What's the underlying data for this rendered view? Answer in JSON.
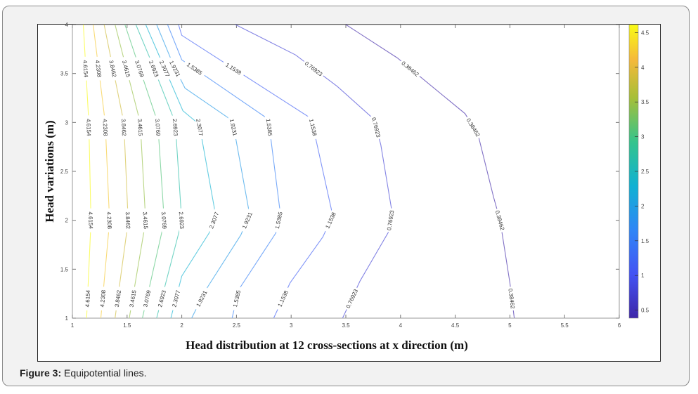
{
  "caption": {
    "label": "Figure 3:",
    "text": " Equipotential lines."
  },
  "chart_data": {
    "type": "contour",
    "xlabel": "Head distribution at 12 cross-sections at x direction (m)",
    "ylabel": "Head variations (m)",
    "xlim": [
      1,
      6
    ],
    "ylim": [
      1,
      4
    ],
    "xticks": [
      "1",
      "1.5",
      "2",
      "2.5",
      "3",
      "3.5",
      "4",
      "4.5",
      "5",
      "5.5",
      "6"
    ],
    "yticks": [
      "1",
      "1.5",
      "2",
      "2.5",
      "3",
      "3.5",
      "4"
    ],
    "colorbar": {
      "colormap": "parula",
      "clim": [
        0.38462,
        4.6154
      ],
      "ticks": [
        "0.5",
        "1",
        "1.5",
        "2",
        "2.5",
        "3",
        "3.5",
        "4",
        "4.5"
      ]
    },
    "grid": false,
    "contours": [
      {
        "level": "4.6154",
        "points": [
          [
            1.1,
            4
          ],
          [
            1.15,
            3.0
          ],
          [
            1.17,
            1.99
          ],
          [
            1.13,
            1.0
          ]
        ]
      },
      {
        "level": "4.2308",
        "points": [
          [
            1.19,
            4
          ],
          [
            1.3,
            3.0
          ],
          [
            1.34,
            1.99
          ],
          [
            1.26,
            1.0
          ]
        ]
      },
      {
        "level": "3.8462",
        "points": [
          [
            1.29,
            4
          ],
          [
            1.47,
            3.0
          ],
          [
            1.51,
            1.99
          ],
          [
            1.39,
            1.0
          ]
        ]
      },
      {
        "level": "3.4615",
        "points": [
          [
            1.39,
            4
          ],
          [
            1.62,
            3.0
          ],
          [
            1.67,
            1.99
          ],
          [
            1.52,
            1.0
          ]
        ]
      },
      {
        "level": "3.0769",
        "points": [
          [
            1.48,
            4
          ],
          [
            1.57,
            3.7
          ],
          [
            1.78,
            3.0
          ],
          [
            1.84,
            1.99
          ],
          [
            1.64,
            1.0
          ]
        ]
      },
      {
        "level": "2.6923",
        "points": [
          [
            1.58,
            4
          ],
          [
            1.7,
            3.68
          ],
          [
            1.94,
            3.0
          ],
          [
            2.0,
            1.99
          ],
          [
            1.77,
            1.0
          ]
        ]
      },
      {
        "level": "2.3077",
        "points": [
          [
            1.67,
            4
          ],
          [
            1.86,
            3.51
          ],
          [
            2.01,
            3.12
          ],
          [
            2.16,
            2.98
          ],
          [
            2.31,
            2.05
          ],
          [
            2.25,
            1.87
          ],
          [
            2.0,
            1.43
          ],
          [
            1.9,
            1.0
          ]
        ]
      },
      {
        "level": "1.9231",
        "points": [
          [
            1.77,
            4
          ],
          [
            1.93,
            3.57
          ],
          [
            2.03,
            3.35
          ],
          [
            2.46,
            3.02
          ],
          [
            2.48,
            2.92
          ],
          [
            2.62,
            2.06
          ],
          [
            2.54,
            1.85
          ],
          [
            2.22,
            1.29
          ],
          [
            2.09,
            1.0
          ]
        ]
      },
      {
        "level": "1.5385",
        "points": [
          [
            1.87,
            4
          ],
          [
            2.0,
            3.64
          ],
          [
            2.77,
            3.05
          ],
          [
            2.8,
            2.96
          ],
          [
            2.9,
            2.08
          ],
          [
            2.86,
            1.87
          ],
          [
            2.52,
            1.29
          ],
          [
            2.46,
            1.0
          ]
        ]
      },
      {
        "level": "1.1538",
        "points": [
          [
            1.97,
            4
          ],
          [
            2.0,
            3.89
          ],
          [
            3.17,
            3.05
          ],
          [
            3.2,
            2.96
          ],
          [
            3.38,
            2.05
          ],
          [
            3.29,
            1.83
          ],
          [
            2.99,
            1.36
          ],
          [
            2.84,
            1.0
          ]
        ]
      },
      {
        "level": "0.76923",
        "points": [
          [
            2.49,
            4
          ],
          [
            3.04,
            3.69
          ],
          [
            3.42,
            3.37
          ],
          [
            3.76,
            3.03
          ],
          [
            3.82,
            2.77
          ],
          [
            3.92,
            2.1
          ],
          [
            3.89,
            1.88
          ],
          [
            3.63,
            1.38
          ],
          [
            3.47,
            1.0
          ]
        ]
      },
      {
        "level": "0.38462",
        "points": [
          [
            3.5,
            4
          ],
          [
            3.97,
            3.66
          ],
          [
            4.59,
            3.09
          ],
          [
            4.71,
            2.87
          ],
          [
            4.85,
            2.24
          ],
          [
            4.91,
            2.0
          ],
          [
            5.0,
            1.36
          ],
          [
            5.04,
            1.0
          ]
        ]
      }
    ]
  }
}
